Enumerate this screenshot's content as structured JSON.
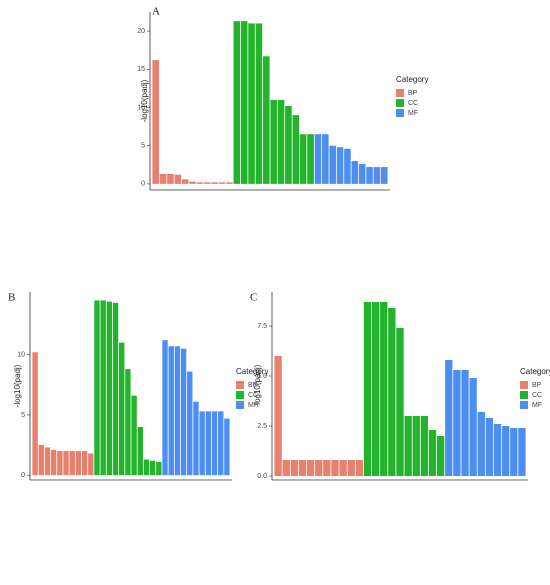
{
  "chart_data": [
    {
      "type": "bar",
      "panel": "A",
      "ylabel": "-log10(padj)",
      "legend_title": "Category",
      "ylim": [
        -0.8,
        22.5
      ],
      "yticks": [
        0,
        5,
        10,
        15,
        20
      ],
      "series": [
        {
          "name": "BP",
          "color": "#e8806f",
          "values": [
            16.2,
            1.3,
            1.3,
            1.2,
            0.6,
            0.3,
            0.2,
            0.2,
            0.2,
            0.2,
            0.2
          ]
        },
        {
          "name": "CC",
          "color": "#24b32c",
          "values": [
            21.3,
            21.3,
            21,
            21,
            16.7,
            11,
            11,
            10.2,
            9,
            6.5,
            6.5
          ]
        },
        {
          "name": "MF",
          "color": "#4d8ff0",
          "values": [
            6.5,
            6.5,
            5,
            4.8,
            4.6,
            3,
            2.6,
            2.2,
            2.2,
            2.2
          ]
        }
      ]
    },
    {
      "type": "bar",
      "panel": "B",
      "ylabel": "-log10(padj)",
      "legend_title": "Category",
      "ylim": [
        -0.4,
        15.2
      ],
      "yticks": [
        0,
        5,
        10
      ],
      "series": [
        {
          "name": "BP",
          "color": "#e8806f",
          "values": [
            10.2,
            2.5,
            2.3,
            2.1,
            2,
            2,
            2,
            2,
            2,
            1.8
          ]
        },
        {
          "name": "CC",
          "color": "#24b32c",
          "values": [
            14.5,
            14.5,
            14.4,
            14.3,
            11,
            8.8,
            6.6,
            4,
            1.3,
            1.2,
            1.1
          ]
        },
        {
          "name": "MF",
          "color": "#4d8ff0",
          "values": [
            11.2,
            10.7,
            10.7,
            10.5,
            8.6,
            6.1,
            5.3,
            5.3,
            5.3,
            5.3,
            4.7
          ]
        }
      ]
    },
    {
      "type": "bar",
      "panel": "C",
      "ylabel": "-log10(padj)",
      "legend_title": "Category",
      "ylim": [
        -0.2,
        9.2
      ],
      "yticks": [
        {
          "value": 0,
          "label": "0.0"
        },
        2.5,
        {
          "value": 5,
          "label": "5.0"
        },
        7.5
      ],
      "series": [
        {
          "name": "BP",
          "color": "#e8806f",
          "values": [
            6,
            0.8,
            0.8,
            0.8,
            0.8,
            0.8,
            0.8,
            0.8,
            0.8,
            0.8,
            0.8
          ]
        },
        {
          "name": "CC",
          "color": "#24b32c",
          "values": [
            8.7,
            8.7,
            8.7,
            8.4,
            7.4,
            3,
            3,
            3,
            2.3,
            2
          ]
        },
        {
          "name": "MF",
          "color": "#4d8ff0",
          "values": [
            5.8,
            5.3,
            5.3,
            4.9,
            3.2,
            2.9,
            2.6,
            2.5,
            2.4,
            2.4
          ]
        }
      ]
    }
  ]
}
